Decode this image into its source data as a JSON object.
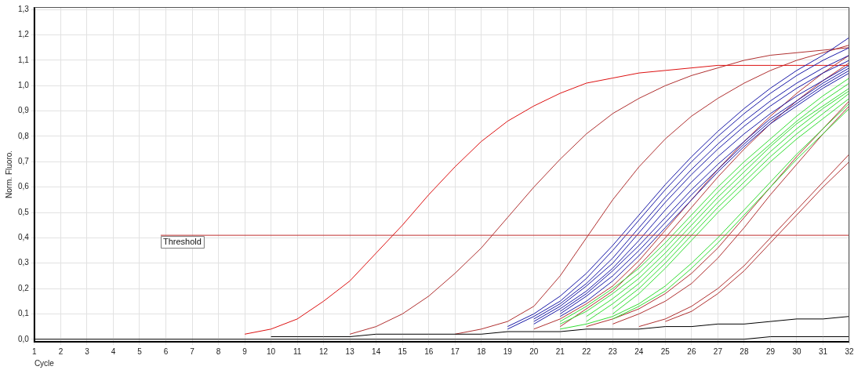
{
  "chart_data": {
    "type": "line",
    "xlabel": "Cycle",
    "ylabel": "Norm. Fluoro.",
    "x": [
      1,
      2,
      3,
      4,
      5,
      6,
      7,
      8,
      9,
      10,
      11,
      12,
      13,
      14,
      15,
      16,
      17,
      18,
      19,
      20,
      21,
      22,
      23,
      24,
      25,
      26,
      27,
      28,
      29,
      30,
      31,
      32
    ],
    "xlim": [
      1,
      32
    ],
    "xticks": [
      1,
      2,
      3,
      4,
      5,
      6,
      7,
      8,
      9,
      10,
      11,
      12,
      13,
      14,
      15,
      16,
      17,
      18,
      19,
      20,
      21,
      22,
      23,
      24,
      25,
      26,
      27,
      28,
      29,
      30,
      31,
      32
    ],
    "ylim": [
      -0.01,
      1.31
    ],
    "yticks": [
      {
        "value": 0,
        "label": "0,0"
      },
      {
        "value": 0.1,
        "label": "0,1"
      },
      {
        "value": 0.2,
        "label": "0,2"
      },
      {
        "value": 0.3,
        "label": "0,3"
      },
      {
        "value": 0.4,
        "label": "0,4"
      },
      {
        "value": 0.5,
        "label": "0,5"
      },
      {
        "value": 0.6,
        "label": "0,6"
      },
      {
        "value": 0.7,
        "label": "0,7"
      },
      {
        "value": 0.8,
        "label": "0,8"
      },
      {
        "value": 0.9,
        "label": "0,9"
      },
      {
        "value": 1.0,
        "label": "1,0"
      },
      {
        "value": 1.1,
        "label": "1,1"
      },
      {
        "value": 1.2,
        "label": "1,2"
      },
      {
        "value": 1.3,
        "label": "1,3"
      }
    ],
    "grid": true,
    "legend": false,
    "marker": "none",
    "line_style": "solid",
    "ref_lines": [
      {
        "axis": "y",
        "value": 0.41,
        "label": "Threshold",
        "color": "#c03030"
      }
    ],
    "series": [
      {
        "color": "#000000",
        "values": [
          0,
          0,
          0,
          0,
          0,
          0,
          0,
          0,
          0,
          0,
          0,
          0,
          0,
          0,
          0,
          0,
          0,
          0,
          0,
          0,
          0,
          0,
          0,
          0,
          0,
          0,
          0,
          0,
          0.01,
          0.01,
          0.01,
          0.01
        ]
      },
      {
        "color": "#000000",
        "x": [
          10,
          11,
          12,
          13,
          14,
          15,
          16,
          17,
          18,
          19,
          20,
          21,
          22,
          23,
          24,
          25,
          26,
          27,
          28,
          29,
          30,
          31,
          32
        ],
        "values": [
          0.01,
          0.01,
          0.01,
          0.01,
          0.02,
          0.02,
          0.02,
          0.02,
          0.02,
          0.03,
          0.03,
          0.03,
          0.04,
          0.04,
          0.04,
          0.05,
          0.05,
          0.06,
          0.06,
          0.07,
          0.08,
          0.08,
          0.09
        ]
      },
      {
        "color": "#33dd33",
        "x": [
          21,
          22,
          23,
          24,
          25,
          26,
          27,
          28,
          29,
          30,
          31,
          32
        ],
        "values": [
          0.07,
          0.13,
          0.2,
          0.28,
          0.38,
          0.49,
          0.6,
          0.7,
          0.79,
          0.88,
          0.96,
          1.03
        ]
      },
      {
        "color": "#33dd33",
        "x": [
          21,
          22,
          23,
          24,
          25,
          26,
          27,
          28,
          29,
          30,
          31,
          32
        ],
        "values": [
          0.06,
          0.11,
          0.18,
          0.26,
          0.36,
          0.47,
          0.58,
          0.68,
          0.77,
          0.86,
          0.94,
          1.01
        ]
      },
      {
        "color": "#33dd33",
        "x": [
          22,
          23,
          24,
          25,
          26,
          27,
          28,
          29,
          30,
          31,
          32
        ],
        "values": [
          0.09,
          0.16,
          0.24,
          0.34,
          0.45,
          0.56,
          0.66,
          0.76,
          0.85,
          0.92,
          0.99
        ]
      },
      {
        "color": "#33dd33",
        "x": [
          22,
          23,
          24,
          25,
          26,
          27,
          28,
          29,
          30,
          31,
          32
        ],
        "values": [
          0.07,
          0.14,
          0.22,
          0.32,
          0.43,
          0.54,
          0.64,
          0.74,
          0.83,
          0.91,
          0.98
        ]
      },
      {
        "color": "#33dd33",
        "x": [
          23,
          24,
          25,
          26,
          27,
          28,
          29,
          30,
          31,
          32
        ],
        "values": [
          0.12,
          0.2,
          0.3,
          0.41,
          0.52,
          0.62,
          0.72,
          0.81,
          0.89,
          0.97
        ]
      },
      {
        "color": "#33dd33",
        "x": [
          23,
          24,
          25,
          26,
          27,
          28,
          29,
          30,
          31,
          32
        ],
        "values": [
          0.1,
          0.18,
          0.28,
          0.39,
          0.5,
          0.6,
          0.7,
          0.79,
          0.87,
          0.95
        ]
      },
      {
        "color": "#33dd33",
        "x": [
          21,
          22,
          23,
          24,
          25,
          26,
          27,
          28,
          29,
          30,
          31,
          32
        ],
        "values": [
          0.04,
          0.06,
          0.09,
          0.14,
          0.21,
          0.3,
          0.4,
          0.51,
          0.62,
          0.73,
          0.83,
          0.93
        ]
      },
      {
        "color": "#33dd33",
        "x": [
          23,
          24,
          25,
          26,
          27,
          28,
          29,
          30,
          31,
          32
        ],
        "values": [
          0.08,
          0.13,
          0.19,
          0.28,
          0.38,
          0.49,
          0.6,
          0.71,
          0.81,
          0.91
        ]
      },
      {
        "color": "#1a1aa8",
        "x": [
          19,
          20,
          21,
          22,
          23,
          24,
          25,
          26,
          27,
          28,
          29,
          30,
          31,
          32
        ],
        "values": [
          0.05,
          0.1,
          0.17,
          0.26,
          0.37,
          0.49,
          0.61,
          0.72,
          0.82,
          0.91,
          0.99,
          1.06,
          1.12,
          1.19
        ]
      },
      {
        "color": "#1a1aa8",
        "x": [
          19,
          20,
          21,
          22,
          23,
          24,
          25,
          26,
          27,
          28,
          29,
          30,
          31,
          32
        ],
        "values": [
          0.04,
          0.09,
          0.15,
          0.24,
          0.35,
          0.47,
          0.59,
          0.7,
          0.8,
          0.89,
          0.97,
          1.04,
          1.1,
          1.15
        ]
      },
      {
        "color": "#1a1aa8",
        "x": [
          20,
          21,
          22,
          23,
          24,
          25,
          26,
          27,
          28,
          29,
          30,
          31,
          32
        ],
        "values": [
          0.08,
          0.14,
          0.22,
          0.32,
          0.44,
          0.56,
          0.67,
          0.77,
          0.86,
          0.94,
          1.01,
          1.07,
          1.12
        ]
      },
      {
        "color": "#1a1aa8",
        "x": [
          20,
          21,
          22,
          23,
          24,
          25,
          26,
          27,
          28,
          29,
          30,
          31,
          32
        ],
        "values": [
          0.07,
          0.13,
          0.21,
          0.3,
          0.42,
          0.54,
          0.65,
          0.75,
          0.84,
          0.92,
          0.99,
          1.05,
          1.1
        ]
      },
      {
        "color": "#1a1aa8",
        "x": [
          20,
          21,
          22,
          23,
          24,
          25,
          26,
          27,
          28,
          29,
          30,
          31,
          32
        ],
        "values": [
          0.06,
          0.12,
          0.19,
          0.28,
          0.39,
          0.51,
          0.62,
          0.72,
          0.81,
          0.89,
          0.96,
          1.02,
          1.08
        ]
      },
      {
        "color": "#1a1aa8",
        "x": [
          21,
          22,
          23,
          24,
          25,
          26,
          27,
          28,
          29,
          30,
          31,
          32
        ],
        "values": [
          0.11,
          0.18,
          0.27,
          0.37,
          0.48,
          0.59,
          0.69,
          0.78,
          0.87,
          0.94,
          1.01,
          1.07
        ]
      },
      {
        "color": "#1a1aa8",
        "x": [
          21,
          22,
          23,
          24,
          25,
          26,
          27,
          28,
          29,
          30,
          31,
          32
        ],
        "values": [
          0.1,
          0.17,
          0.25,
          0.35,
          0.46,
          0.57,
          0.67,
          0.77,
          0.86,
          0.93,
          1.0,
          1.06
        ]
      },
      {
        "color": "#1a1aa8",
        "x": [
          21,
          22,
          23,
          24,
          25,
          26,
          27,
          28,
          29,
          30,
          31,
          32
        ],
        "values": [
          0.09,
          0.15,
          0.23,
          0.33,
          0.44,
          0.55,
          0.66,
          0.76,
          0.85,
          0.92,
          0.99,
          1.05
        ]
      },
      {
        "color": "#dd1111",
        "x": [
          9,
          10,
          11,
          12,
          13,
          14,
          15,
          16,
          17,
          18,
          19,
          20,
          21,
          22,
          23,
          24,
          25,
          26,
          27,
          28,
          29,
          30,
          31,
          32
        ],
        "values": [
          0.02,
          0.04,
          0.08,
          0.15,
          0.23,
          0.34,
          0.45,
          0.57,
          0.68,
          0.78,
          0.86,
          0.92,
          0.97,
          1.01,
          1.03,
          1.05,
          1.06,
          1.07,
          1.08,
          1.08,
          1.08,
          1.08,
          1.08,
          1.08
        ]
      },
      {
        "color": "#b03030",
        "x": [
          13,
          14,
          15,
          16,
          17,
          18,
          19,
          20,
          21,
          22,
          23,
          24,
          25,
          26,
          27,
          28,
          29,
          30,
          31,
          32
        ],
        "values": [
          0.02,
          0.05,
          0.1,
          0.17,
          0.26,
          0.36,
          0.48,
          0.6,
          0.71,
          0.81,
          0.89,
          0.95,
          1.0,
          1.04,
          1.07,
          1.1,
          1.12,
          1.13,
          1.14,
          1.15
        ]
      },
      {
        "color": "#b03030",
        "x": [
          17,
          18,
          19,
          20,
          21,
          22,
          23,
          24,
          25,
          26,
          27,
          28,
          29,
          30,
          31,
          32
        ],
        "values": [
          0.02,
          0.04,
          0.07,
          0.13,
          0.25,
          0.4,
          0.55,
          0.68,
          0.79,
          0.88,
          0.95,
          1.01,
          1.06,
          1.1,
          1.13,
          1.16
        ]
      },
      {
        "color": "#b03030",
        "x": [
          20,
          21,
          22,
          23,
          24,
          25,
          26,
          27,
          28,
          29,
          30,
          31,
          32
        ],
        "values": [
          0.04,
          0.08,
          0.14,
          0.21,
          0.31,
          0.43,
          0.55,
          0.67,
          0.78,
          0.88,
          0.97,
          1.05,
          1.12
        ]
      },
      {
        "color": "#b03030",
        "x": [
          21,
          22,
          23,
          24,
          25,
          26,
          27,
          28,
          29,
          30,
          31,
          32
        ],
        "values": [
          0.05,
          0.12,
          0.19,
          0.29,
          0.4,
          0.52,
          0.64,
          0.75,
          0.85,
          0.94,
          1.02,
          1.09
        ]
      },
      {
        "color": "#b03030",
        "x": [
          22,
          23,
          24,
          25,
          26,
          27,
          28,
          29,
          30,
          31,
          32
        ],
        "values": [
          0.05,
          0.08,
          0.12,
          0.18,
          0.26,
          0.36,
          0.48,
          0.6,
          0.72,
          0.83,
          0.94
        ]
      },
      {
        "color": "#b03030",
        "x": [
          23,
          24,
          25,
          26,
          27,
          28,
          29,
          30,
          31,
          32
        ],
        "values": [
          0.06,
          0.1,
          0.15,
          0.22,
          0.32,
          0.44,
          0.57,
          0.69,
          0.81,
          0.92
        ]
      },
      {
        "color": "#b03030",
        "x": [
          24,
          25,
          26,
          27,
          28,
          29,
          30,
          31,
          32
        ],
        "values": [
          0.05,
          0.08,
          0.13,
          0.2,
          0.29,
          0.4,
          0.51,
          0.62,
          0.73
        ]
      },
      {
        "color": "#b03030",
        "x": [
          25,
          26,
          27,
          28,
          29,
          30,
          31,
          32
        ],
        "values": [
          0.07,
          0.11,
          0.18,
          0.27,
          0.38,
          0.49,
          0.6,
          0.7
        ]
      }
    ]
  }
}
